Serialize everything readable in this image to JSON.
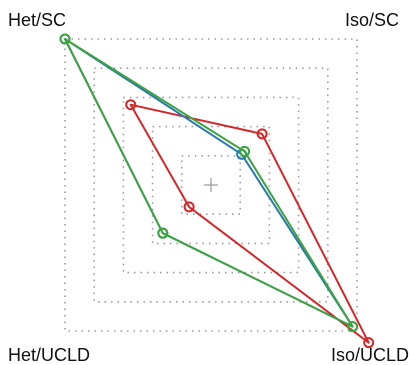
{
  "chart_data": {
    "type": "line",
    "subtype": "radar",
    "axes": [
      "Het/SC",
      "Iso/SC",
      "Iso/UCLD",
      "Het/UCLD"
    ],
    "range": [
      0,
      1
    ],
    "ring_levels": [
      0.2,
      0.4,
      0.6,
      0.8,
      1.0
    ],
    "grid": true,
    "series": [
      {
        "color": "#d62728",
        "values": [
          0.55,
          0.35,
          1.08,
          0.15
        ]
      },
      {
        "color": "#2a7ab0",
        "values": [
          1.0,
          0.21,
          0.97,
          0.33
        ]
      },
      {
        "color": "#3da33d",
        "values": [
          1.0,
          0.23,
          0.97,
          0.33
        ]
      }
    ]
  }
}
